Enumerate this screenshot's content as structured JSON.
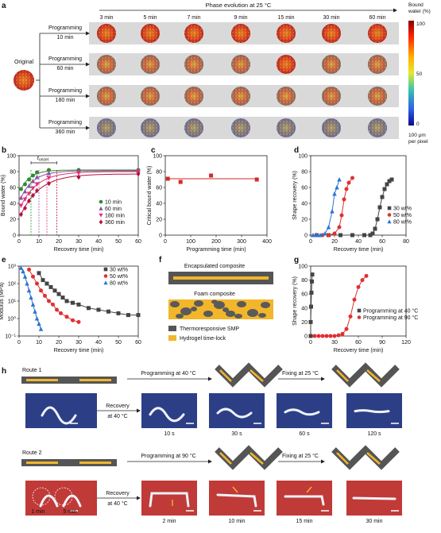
{
  "panel_a": {
    "letter": "a",
    "header": "Phase evolution at 25 °C",
    "times": [
      "3 min",
      "5 min",
      "7 min",
      "9 min",
      "15 min",
      "30 min",
      "60 min"
    ],
    "original_label": "Original",
    "programming_label": "Programming",
    "row_times": [
      "10 min",
      "60 min",
      "180 min",
      "360 min"
    ],
    "colorbar": {
      "title_line1": "Bound",
      "title_line2": "water (%)",
      "ticks": [
        "100",
        "50",
        "0"
      ],
      "scale_line1": "100 μm",
      "scale_line2": "per pixel"
    }
  },
  "chart_data": [
    {
      "panel": "b",
      "type": "scatter",
      "xlabel": "Recovery time (min)",
      "ylabel": "Bound water (%)",
      "xlim": [
        0,
        60
      ],
      "ylim": [
        0,
        100
      ],
      "xticks": [
        "0",
        "10",
        "20",
        "30",
        "40",
        "50",
        "60"
      ],
      "yticks": [
        "0",
        "20",
        "40",
        "60",
        "80",
        "100"
      ],
      "annotation": "t",
      "annotation_sub": "onset",
      "legend_position": "lower-right",
      "series": [
        {
          "name": "10 min",
          "color": "#2e8b2e",
          "marker": "circle",
          "x": [
            1,
            3,
            5,
            7,
            9,
            15,
            30,
            60
          ],
          "y": [
            58,
            64,
            70,
            75,
            79,
            82,
            82,
            82
          ]
        },
        {
          "name": "60 min",
          "color": "#8a4fa0",
          "marker": "triangle",
          "x": [
            1,
            3,
            5,
            7,
            9,
            15,
            30,
            60
          ],
          "y": [
            47,
            55,
            62,
            68,
            73,
            78,
            81,
            81
          ]
        },
        {
          "name": "180 min",
          "color": "#e0307a",
          "marker": "triangle-down",
          "x": [
            1,
            3,
            5,
            7,
            9,
            15,
            30,
            60
          ],
          "y": [
            37,
            45,
            52,
            59,
            64,
            72,
            78,
            80
          ]
        },
        {
          "name": "360 min",
          "color": "#b3123a",
          "marker": "diamond",
          "x": [
            1,
            3,
            5,
            7,
            9,
            15,
            30,
            60
          ],
          "y": [
            26,
            34,
            43,
            50,
            56,
            65,
            73,
            77
          ]
        }
      ]
    },
    {
      "panel": "c",
      "type": "scatter",
      "xlabel": "Programming time (min)",
      "ylabel": "Critical bound water (%)",
      "xlim": [
        0,
        400
      ],
      "ylim": [
        0,
        100
      ],
      "xticks": [
        "0",
        "100",
        "200",
        "300",
        "400"
      ],
      "yticks": [
        "0",
        "20",
        "40",
        "60",
        "80",
        "100"
      ],
      "series": [
        {
          "name": "",
          "color": "#d42a2a",
          "marker": "square",
          "x": [
            10,
            60,
            180,
            360
          ],
          "y": [
            71,
            67,
            75,
            70
          ]
        }
      ]
    },
    {
      "panel": "d",
      "type": "line",
      "xlabel": "Recovery time (min)",
      "ylabel": "Shape recovery (%)",
      "xlim": [
        0,
        80
      ],
      "ylim": [
        0,
        100
      ],
      "xticks": [
        "0",
        "20",
        "40",
        "60",
        "80"
      ],
      "yticks": [
        "0",
        "20",
        "40",
        "60",
        "80",
        "100"
      ],
      "legend_position": "right",
      "series": [
        {
          "name": "30 wt%",
          "color": "#444444",
          "marker": "square",
          "x": [
            5,
            15,
            25,
            35,
            45,
            50,
            52,
            54,
            56,
            58,
            60,
            62,
            64,
            66,
            68
          ],
          "y": [
            0,
            0,
            0,
            0,
            0,
            0,
            2,
            8,
            20,
            35,
            48,
            58,
            64,
            68,
            70
          ]
        },
        {
          "name": "50 wt%",
          "color": "#e03030",
          "marker": "circle",
          "x": [
            5,
            10,
            15,
            20,
            24,
            26,
            28,
            30,
            32,
            35
          ],
          "y": [
            0,
            0,
            0,
            2,
            10,
            25,
            45,
            58,
            66,
            72
          ]
        },
        {
          "name": "80 wt%",
          "color": "#2a75d0",
          "marker": "triangle",
          "x": [
            2,
            5,
            8,
            12,
            15,
            18,
            20,
            22,
            24
          ],
          "y": [
            0,
            0,
            0,
            2,
            10,
            30,
            52,
            60,
            70
          ]
        }
      ]
    },
    {
      "panel": "e",
      "type": "scatter",
      "xlabel": "Recovery time (min)",
      "ylabel": "Modulus (MPa)",
      "xlim": [
        0,
        60
      ],
      "ylim": [
        -1,
        3
      ],
      "yscale": "log",
      "xticks": [
        "0",
        "10",
        "20",
        "30",
        "40",
        "50",
        "60"
      ],
      "yticks": [
        "10⁻¹",
        "10⁰",
        "10¹",
        "10²",
        "10³"
      ],
      "legend_position": "top-right",
      "series": [
        {
          "name": "30 wt%",
          "color": "#444444",
          "marker": "square",
          "x": [
            10,
            12,
            14,
            16,
            18,
            20,
            22,
            24,
            27,
            30,
            35,
            40,
            45,
            50,
            55,
            60
          ],
          "y": [
            2.6,
            2.2,
            2.0,
            1.8,
            1.6,
            1.4,
            1.2,
            1.0,
            0.9,
            0.8,
            0.6,
            0.5,
            0.4,
            0.3,
            0.2,
            0.2
          ]
        },
        {
          "name": "50 wt%",
          "color": "#e03030",
          "marker": "circle",
          "x": [
            5,
            7,
            9,
            11,
            13,
            15,
            17,
            19,
            21,
            24,
            27,
            30
          ],
          "y": [
            2.8,
            2.4,
            2.0,
            1.6,
            1.3,
            1.0,
            0.8,
            0.5,
            0.3,
            0.1,
            -0.1,
            -0.2
          ]
        },
        {
          "name": "80 wt%",
          "color": "#2a75d0",
          "marker": "triangle",
          "x": [
            1,
            2,
            3,
            4,
            5,
            6,
            7,
            8,
            9,
            10,
            11
          ],
          "y": [
            2.9,
            2.7,
            2.4,
            2.0,
            1.6,
            1.2,
            0.8,
            0.4,
            0.0,
            -0.3,
            -0.6
          ]
        }
      ]
    },
    {
      "panel": "g",
      "type": "scatter",
      "xlabel": "Recovery time (min)",
      "ylabel": "Shape recovery (%)",
      "xlim": [
        0,
        120
      ],
      "ylim": [
        0,
        100
      ],
      "xticks": [
        "0",
        "30",
        "60",
        "90",
        "120"
      ],
      "yticks": [
        "0",
        "20",
        "40",
        "60",
        "80",
        "100"
      ],
      "legend_position": "lower-right",
      "series": [
        {
          "name": "Programming at 40 °C",
          "color": "#444444",
          "marker": "square",
          "x": [
            0,
            0,
            0.5,
            1,
            1.5,
            2
          ],
          "y": [
            0,
            20,
            42,
            62,
            78,
            88
          ]
        },
        {
          "name": "Programming at 90 °C",
          "color": "#e03030",
          "marker": "circle",
          "x": [
            5,
            10,
            15,
            20,
            25,
            30,
            35,
            40,
            45,
            50,
            55,
            60,
            65,
            70
          ],
          "y": [
            0,
            0,
            0,
            0,
            0,
            0,
            1,
            3,
            10,
            28,
            52,
            70,
            80,
            86
          ]
        }
      ]
    }
  ],
  "panel_b_letter": "b",
  "panel_c_letter": "c",
  "panel_d_letter": "d",
  "panel_e_letter": "e",
  "panel_g_letter": "g",
  "panel_f": {
    "letter": "f",
    "encapsulated": "Encapsulated composite",
    "foam": "Foam composite",
    "legend": [
      {
        "label": "Thermoresponsive SMP",
        "color": "#555555"
      },
      {
        "label": "Hydrogel time-lock",
        "color": "#f2b62a"
      }
    ]
  },
  "panel_h": {
    "letter": "h",
    "route1": {
      "label": "Route 1",
      "programming": "Programming at 40 °C",
      "fixing": "Fixing at 25 °C",
      "recovery_line1": "Recovery",
      "recovery_line2": "at 40 °C",
      "times": [
        "10 s",
        "30 s",
        "60 s",
        "120 s"
      ],
      "bg": "#2c3f86"
    },
    "route2": {
      "label": "Route 2",
      "programming": "Programming at 90 °C",
      "fixing": "Fixing at 25 °C",
      "recovery_line1": "Recovery",
      "recovery_line2": "at 40 °C",
      "times": [
        "2 min",
        "10 min",
        "15 min",
        "30 min"
      ],
      "note1": "1 min",
      "note2": "5 min",
      "bg": "#c03a38"
    }
  }
}
